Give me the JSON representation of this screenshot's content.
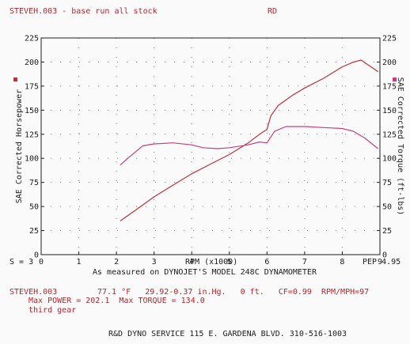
{
  "header": {
    "title": "STEVEH.003 - base run all stock",
    "shop_code": "RD"
  },
  "chart_data": {
    "type": "line",
    "xlabel": "RPM (x1000)",
    "ylabel_left": "SAE Corrected Horsepower",
    "ylabel_right": "SAE Corrected Torque (ft-lbs)",
    "xlim": [
      0,
      9
    ],
    "ylim": [
      0,
      225
    ],
    "x_ticks": [
      "0",
      "1",
      "2",
      "3",
      "4",
      "5",
      "6",
      "7",
      "8",
      "9"
    ],
    "y_ticks": [
      "0",
      "25",
      "50",
      "75",
      "100",
      "125",
      "150",
      "175",
      "200",
      "225"
    ],
    "grid": true,
    "series": [
      {
        "key": "horsepower",
        "color": "#c0303a",
        "points": [
          [
            2.1,
            35
          ],
          [
            2.5,
            46
          ],
          [
            3.0,
            60
          ],
          [
            3.5,
            72
          ],
          [
            4.0,
            84
          ],
          [
            4.5,
            94
          ],
          [
            5.0,
            104
          ],
          [
            5.5,
            116
          ],
          [
            5.8,
            125
          ],
          [
            6.0,
            130
          ],
          [
            6.1,
            144
          ],
          [
            6.3,
            155
          ],
          [
            6.7,
            166
          ],
          [
            7.0,
            173
          ],
          [
            7.5,
            183
          ],
          [
            8.0,
            195
          ],
          [
            8.3,
            200
          ],
          [
            8.5,
            202
          ],
          [
            8.8,
            194
          ],
          [
            8.95,
            190
          ]
        ]
      },
      {
        "key": "torque",
        "color": "#c2407e",
        "points": [
          [
            2.1,
            93
          ],
          [
            2.3,
            100
          ],
          [
            2.7,
            113
          ],
          [
            3.0,
            115
          ],
          [
            3.5,
            116
          ],
          [
            4.0,
            114
          ],
          [
            4.3,
            111
          ],
          [
            4.7,
            110
          ],
          [
            5.0,
            111
          ],
          [
            5.5,
            114
          ],
          [
            5.8,
            117
          ],
          [
            6.0,
            116
          ],
          [
            6.2,
            128
          ],
          [
            6.5,
            133
          ],
          [
            7.0,
            133
          ],
          [
            7.5,
            132
          ],
          [
            8.0,
            131
          ],
          [
            8.3,
            128
          ],
          [
            8.6,
            121
          ],
          [
            8.95,
            110
          ]
        ]
      }
    ],
    "left_label": "S = 3",
    "right_label": "PEP 4.95",
    "caption": "As measured on DYNOJET'S MODEL 248C DYNAMOMETER"
  },
  "footer": {
    "run_file": "STEVEH.003",
    "conditions": "77.1 °F   29.92-0.37 in.Hg.   0 ft.   CF=0.99  RPM/MPH=97",
    "max_values": "Max POWER = 202.1  Max TORQUE = 134.0",
    "gear": "third gear",
    "shop_info": "R&D DYNO SERVICE 115 E. GARDENA BLVD. 310-516-1003"
  }
}
